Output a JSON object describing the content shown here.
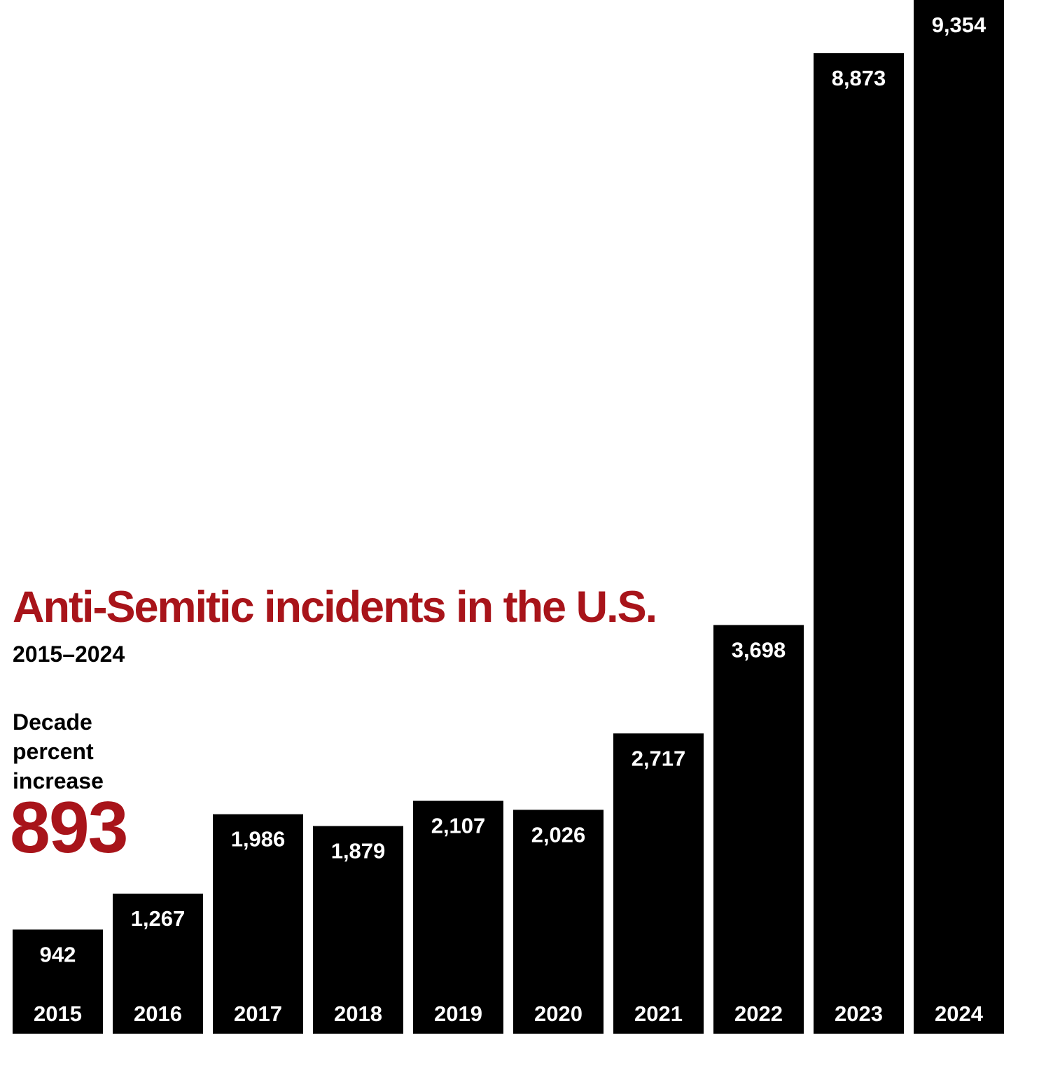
{
  "colors": {
    "accent": "#a8141a",
    "bar": "#000000",
    "bar_text": "#ffffff",
    "text": "#000000"
  },
  "header": {
    "title": "Anti-Semitic incidents in the U.S.",
    "subtitle": "2015–2024"
  },
  "stat": {
    "label": "Decade percent increase",
    "value": "893"
  },
  "chart_data": {
    "type": "bar",
    "title": "Anti-Semitic incidents in the U.S.",
    "subtitle": "2015–2024",
    "xlabel": "",
    "ylabel": "",
    "ylim": [
      0,
      9354
    ],
    "grid": false,
    "categories": [
      "2015",
      "2016",
      "2017",
      "2018",
      "2019",
      "2020",
      "2021",
      "2022",
      "2023",
      "2024"
    ],
    "values": [
      942,
      1267,
      1986,
      1879,
      2107,
      2026,
      2717,
      3698,
      8873,
      9354
    ],
    "value_labels": [
      "942",
      "1,267",
      "1,986",
      "1,879",
      "2,107",
      "2,026",
      "2,717",
      "3,698",
      "8,873",
      "9,354"
    ]
  }
}
